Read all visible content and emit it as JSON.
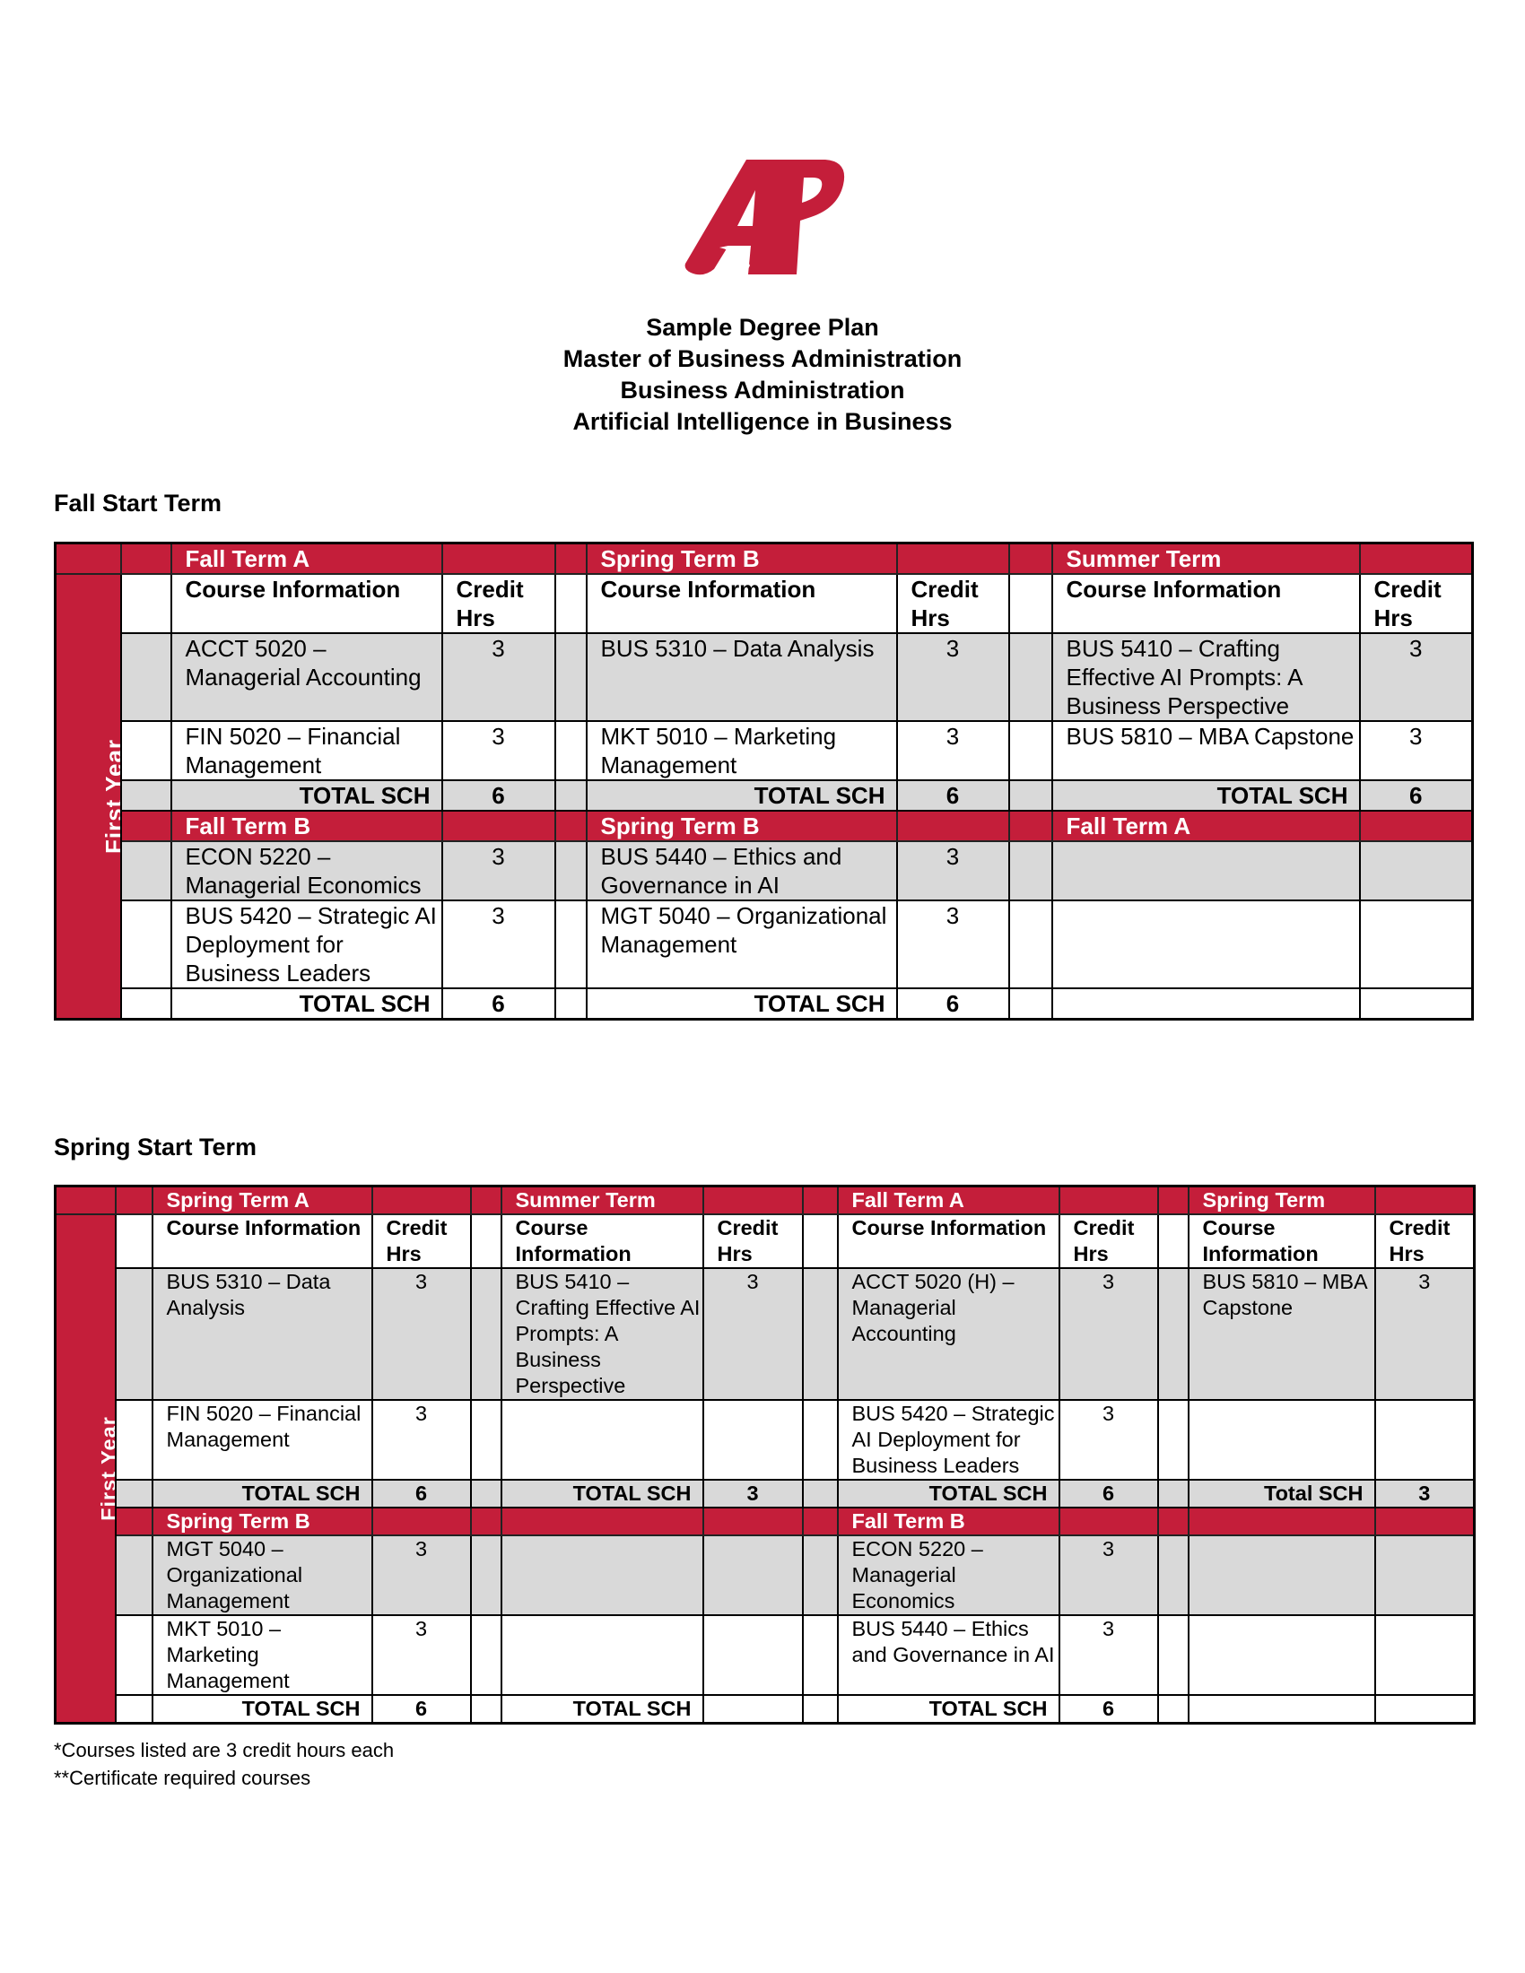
{
  "logo": {
    "text": "AP",
    "color": "#c41e3a"
  },
  "titles": [
    "Sample Degree Plan",
    "Master of Business Administration",
    "Business Administration",
    "Artificial Intelligence in Business"
  ],
  "colors": {
    "accent": "#c41e3a",
    "row_grey": "#d9d9d9"
  },
  "fall_start": {
    "heading": "Fall Start Term",
    "year_label": "First Year",
    "col_course": "Course Information",
    "col_credit": "Credit Hrs",
    "sections": [
      {
        "terms": [
          {
            "name": "Fall Term A",
            "courses": [
              {
                "name": "ACCT 5020 – Managerial Accounting",
                "credits": "3"
              },
              {
                "name": "FIN 5020 – Financial Management",
                "credits": "3"
              }
            ],
            "total_label": "TOTAL SCH",
            "total": "6"
          },
          {
            "name": "Spring Term B",
            "courses": [
              {
                "name": "BUS 5310 – Data Analysis",
                "credits": "3"
              },
              {
                "name": "MKT 5010 – Marketing Management",
                "credits": "3"
              }
            ],
            "total_label": "TOTAL SCH",
            "total": "6"
          },
          {
            "name": "Summer Term",
            "courses": [
              {
                "name": "BUS 5410 – Crafting Effective AI Prompts: A Business Perspective",
                "credits": "3"
              },
              {
                "name": "BUS 5810 – MBA Capstone",
                "credits": "3"
              }
            ],
            "total_label": "TOTAL SCH",
            "total": "6"
          }
        ]
      },
      {
        "terms": [
          {
            "name": "Fall Term B",
            "courses": [
              {
                "name": "ECON 5220 – Managerial Economics",
                "credits": "3"
              },
              {
                "name": "BUS 5420 – Strategic AI Deployment for Business Leaders",
                "credits": "3"
              }
            ],
            "total_label": "TOTAL SCH",
            "total": "6"
          },
          {
            "name": "Spring Term B",
            "courses": [
              {
                "name": "BUS 5440 – Ethics and Governance in AI",
                "credits": "3"
              },
              {
                "name": "MGT 5040 – Organizational Management",
                "credits": "3"
              }
            ],
            "total_label": "TOTAL SCH",
            "total": "6"
          },
          {
            "name": "Fall Term A",
            "courses": [
              {
                "name": "",
                "credits": ""
              },
              {
                "name": "",
                "credits": ""
              }
            ],
            "total_label": "",
            "total": ""
          }
        ]
      }
    ]
  },
  "spring_start": {
    "heading": "Spring Start Term",
    "year_label": "First Year",
    "col_course": "Course Information",
    "col_credit": "Credit Hrs",
    "sections": [
      {
        "terms": [
          {
            "name": "Spring Term A",
            "courses": [
              {
                "name": "BUS 5310 – Data Analysis",
                "credits": "3"
              },
              {
                "name": "FIN 5020 – Financial Management",
                "credits": "3"
              }
            ],
            "total_label": "TOTAL SCH",
            "total": "6"
          },
          {
            "name": "Summer Term",
            "courses": [
              {
                "name": "BUS 5410 – Crafting Effective AI Prompts: A Business Perspective",
                "credits": "3"
              },
              {
                "name": "",
                "credits": ""
              }
            ],
            "total_label": "TOTAL SCH",
            "total": "3"
          },
          {
            "name": "Fall Term A",
            "courses": [
              {
                "name": "ACCT 5020 (H) – Managerial Accounting",
                "credits": "3"
              },
              {
                "name": "BUS 5420 – Strategic AI Deployment for Business Leaders",
                "credits": "3"
              }
            ],
            "total_label": "TOTAL SCH",
            "total": "6"
          },
          {
            "name": "Spring Term",
            "courses": [
              {
                "name": "BUS 5810 – MBA Capstone",
                "credits": "3"
              },
              {
                "name": "",
                "credits": ""
              }
            ],
            "total_label": "Total SCH",
            "total": "3"
          }
        ]
      },
      {
        "terms": [
          {
            "name": "Spring Term B",
            "courses": [
              {
                "name": "MGT 5040 – Organizational Management",
                "credits": "3"
              },
              {
                "name": "MKT 5010 – Marketing Management",
                "credits": "3"
              }
            ],
            "total_label": "TOTAL SCH",
            "total": "6"
          },
          {
            "name": "",
            "courses": [
              {
                "name": "",
                "credits": ""
              },
              {
                "name": "",
                "credits": ""
              }
            ],
            "total_label": "TOTAL SCH",
            "total": ""
          },
          {
            "name": "Fall Term B",
            "courses": [
              {
                "name": "ECON 5220 – Managerial Economics",
                "credits": "3"
              },
              {
                "name": "BUS 5440 – Ethics and Governance in AI",
                "credits": "3"
              }
            ],
            "total_label": "TOTAL SCH",
            "total": "6"
          },
          {
            "name": "",
            "courses": [
              {
                "name": "",
                "credits": ""
              },
              {
                "name": "",
                "credits": ""
              }
            ],
            "total_label": "",
            "total": ""
          }
        ]
      }
    ]
  },
  "footnotes": [
    "*Courses listed are 3 credit hours each",
    "**Certificate required courses"
  ]
}
